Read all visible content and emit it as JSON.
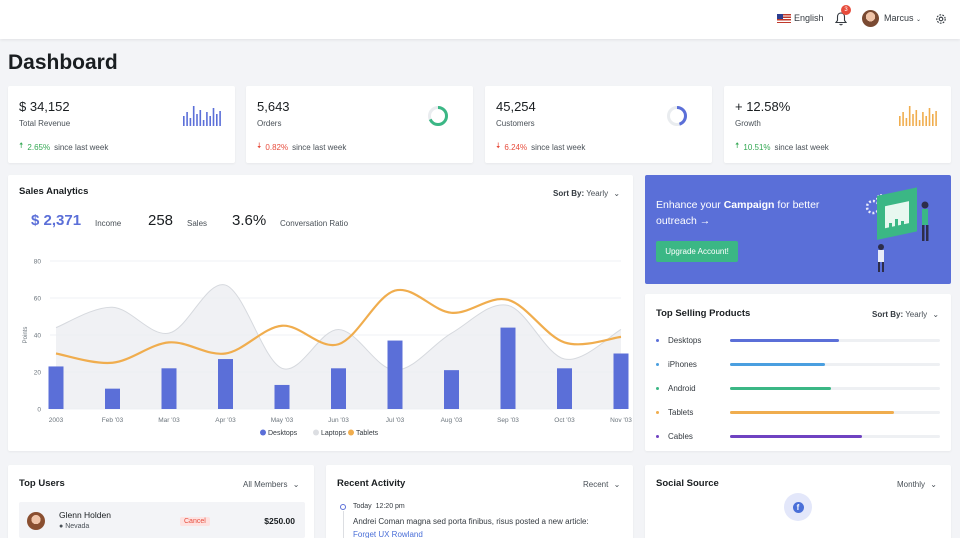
{
  "topbar": {
    "language": "English",
    "notifications_count": "3",
    "user_name": "Marcus"
  },
  "page": {
    "title": "Dashboard"
  },
  "stats": [
    {
      "value": "$ 34,152",
      "label": "Total Revenue",
      "change": "2.65%",
      "direction": "up",
      "suffix": "since last week",
      "graphic": "bars",
      "color": "#5b6fd8"
    },
    {
      "value": "5,643",
      "label": "Orders",
      "change": "0.82%",
      "direction": "down",
      "suffix": "since last week",
      "graphic": "ring",
      "color": "#3bb785",
      "fill": 0.68
    },
    {
      "value": "45,254",
      "label": "Customers",
      "change": "6.24%",
      "direction": "down",
      "suffix": "since last week",
      "graphic": "ring",
      "color": "#5b6fd8",
      "fill": 0.45
    },
    {
      "value": "+ 12.58%",
      "label": "Growth",
      "change": "10.51%",
      "direction": "up",
      "suffix": "since last week",
      "graphic": "bars",
      "color": "#f0ad4e"
    }
  ],
  "sales": {
    "title": "Sales Analytics",
    "sort_label": "Sort By:",
    "sort_value": "Yearly",
    "income_value": "$ 2,371",
    "income_label": "Income",
    "sales_value": "258",
    "sales_label": "Sales",
    "ratio_value": "3.6%",
    "ratio_label": "Conversation Ratio"
  },
  "chart_data": {
    "type": "bar",
    "categories": [
      "2003",
      "Feb '03",
      "Mar '03",
      "Apr '03",
      "May '03",
      "Jun '03",
      "Jul '03",
      "Aug '03",
      "Sep '03",
      "Oct '03",
      "Nov '03"
    ],
    "ylabel": "Points",
    "ylim": [
      0,
      80
    ],
    "yticks": [
      0,
      20,
      40,
      60,
      80
    ],
    "grid": true,
    "legend_position": "bottom",
    "series": [
      {
        "name": "Desktops",
        "kind": "bar",
        "color": "#5b6fd8",
        "values": [
          23,
          11,
          22,
          27,
          13,
          22,
          37,
          21,
          44,
          22,
          30
        ]
      },
      {
        "name": "Laptops",
        "kind": "area",
        "color": "#dcdee2",
        "values": [
          44,
          55,
          41,
          67,
          22,
          43,
          21,
          41,
          56,
          27,
          43
        ]
      },
      {
        "name": "Tablets",
        "kind": "line",
        "color": "#f0ad4e",
        "values": [
          30,
          25,
          36,
          30,
          45,
          35,
          64,
          52,
          59,
          36,
          39
        ]
      }
    ]
  },
  "promo": {
    "text_before": "Enhance your ",
    "text_bold": "Campaign",
    "text_after": " for better outreach →",
    "button": "Upgrade Account!"
  },
  "products": {
    "title": "Top Selling Products",
    "sort_label": "Sort By:",
    "sort_value": "Yearly",
    "items": [
      {
        "name": "Desktops",
        "level": 0.52,
        "color": "#5b6fd8"
      },
      {
        "name": "iPhones",
        "level": 0.45,
        "color": "#4a9fe0"
      },
      {
        "name": "Android",
        "level": 0.48,
        "color": "#3bb785"
      },
      {
        "name": "Tablets",
        "level": 0.78,
        "color": "#f0ad4e"
      },
      {
        "name": "Cables",
        "level": 0.63,
        "color": "#6f42c1"
      }
    ]
  },
  "top_users": {
    "title": "Top Users",
    "filter": "All Members",
    "user_name": "Glenn Holden",
    "user_location": "Nevada",
    "status": "Cancel",
    "amount": "$250.00"
  },
  "activity": {
    "title": "Recent Activity",
    "filter": "Recent",
    "day": "Today",
    "time": "12:20 pm",
    "text": "Andrei Coman magna sed porta finibus, risus posted a new article:",
    "link": "Forget UX Rowland"
  },
  "social": {
    "title": "Social Source",
    "filter": "Monthly"
  }
}
